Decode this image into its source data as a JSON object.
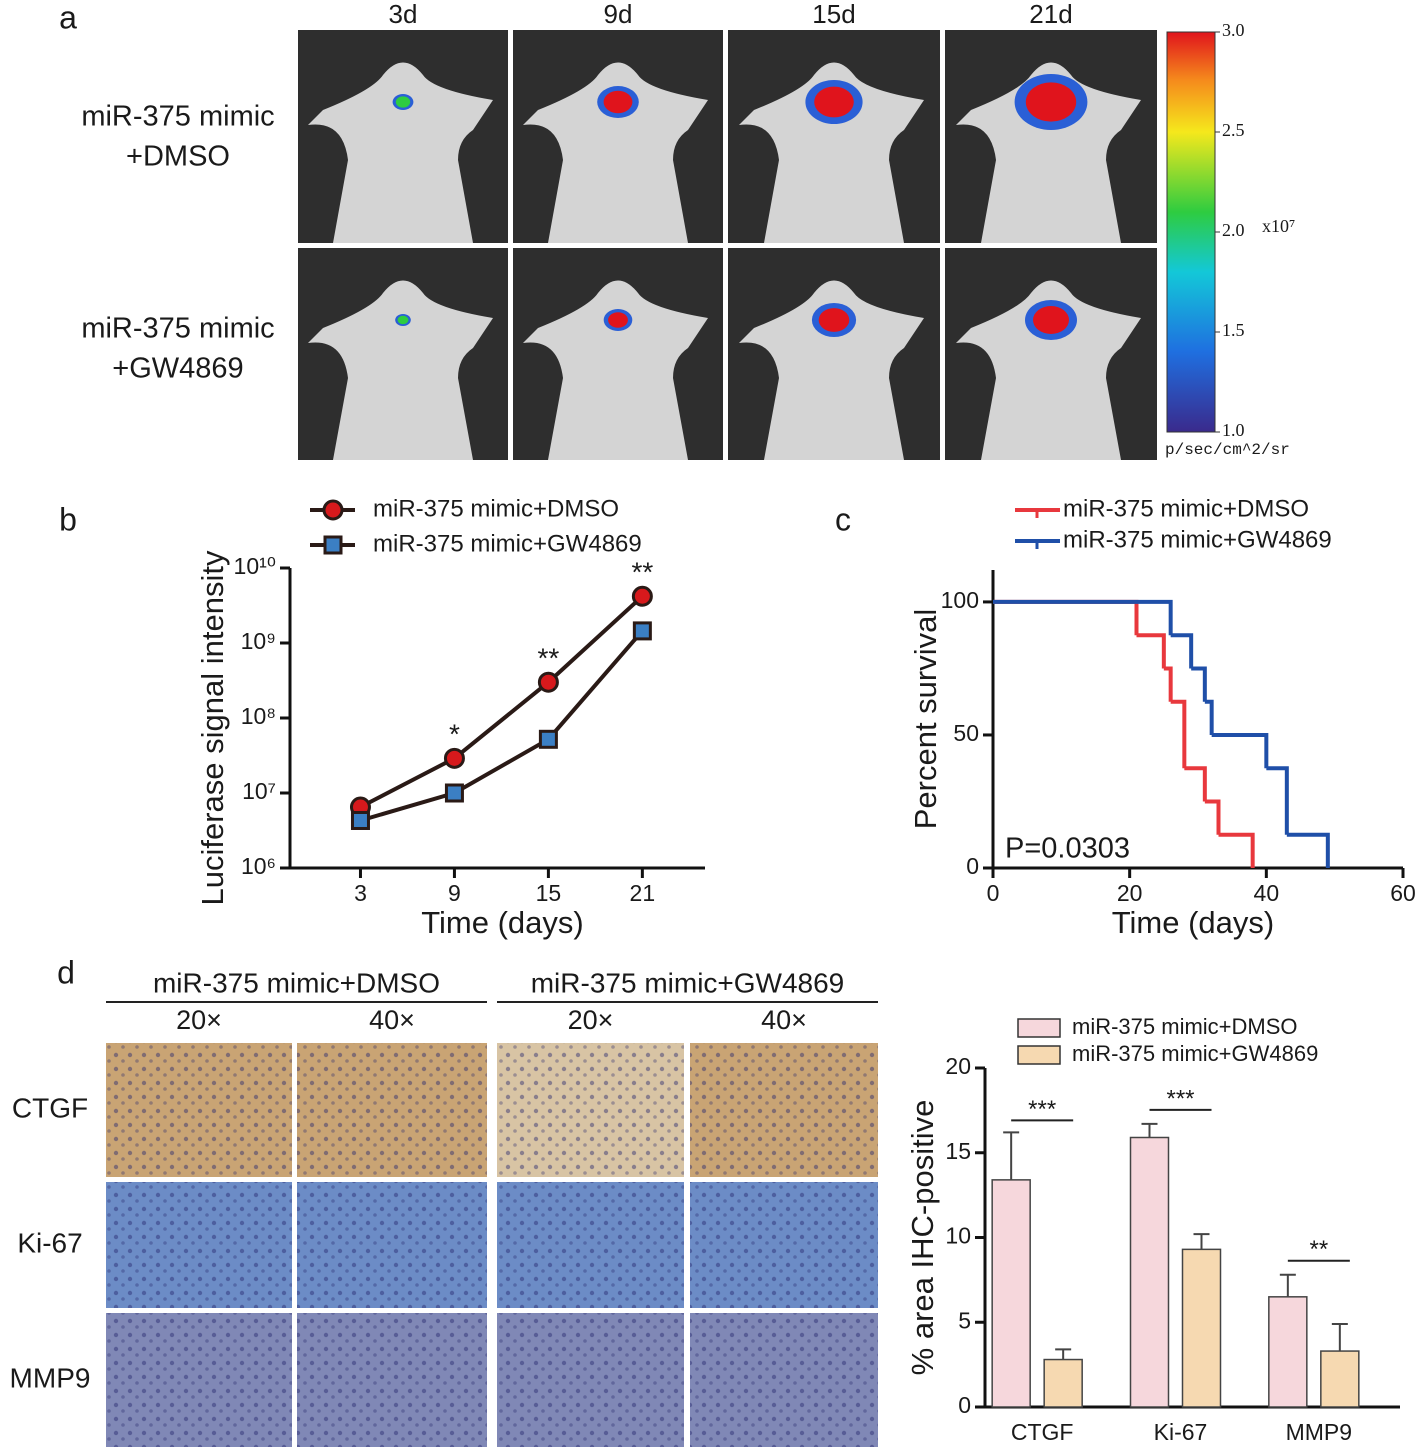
{
  "figure": {
    "panel_labels": [
      "a",
      "b",
      "c",
      "d"
    ],
    "imaging": {
      "timepoints": [
        "3d",
        "9d",
        "15d",
        "21d"
      ],
      "groups": [
        [
          "miR-375 mimic",
          "+DMSO"
        ],
        [
          "miR-375 mimic",
          "+GW4869"
        ]
      ],
      "colorbar": {
        "range": [
          1,
          3
        ],
        "ticks": [
          {
            "value": 3,
            "label": "3.0"
          },
          2.5,
          {
            "value": 2,
            "label": "2.0"
          },
          1.5,
          {
            "value": 1,
            "label": "1.0"
          }
        ],
        "multiplier": "x10⁷",
        "unit": "p/sec/cm^2/sr"
      }
    },
    "ihc": {
      "groups": [
        "miR-375 mimic+DMSO",
        "miR-375 mimic+GW4869"
      ],
      "magnifications": [
        "20×",
        "40×",
        "20×",
        "40×"
      ],
      "markers": [
        "CTGF",
        "Ki-67",
        "MMP9"
      ]
    }
  },
  "chart_data": [
    {
      "type": "line",
      "x_label": "Time (days)",
      "y_label": "Luciferase signal intensity",
      "x": [
        3,
        9,
        15,
        21
      ],
      "xlim": [
        -1.5,
        25
      ],
      "xticks": [
        3,
        9,
        15,
        21
      ],
      "log_y": true,
      "ylim": [
        1000000,
        10000000000
      ],
      "yticks": [
        {
          "value": 1000000,
          "label": "10⁶"
        },
        {
          "value": 10000000,
          "label": "10⁷"
        },
        {
          "value": 100000000,
          "label": "10⁸"
        },
        {
          "value": 1000000000,
          "label": "10⁹"
        },
        {
          "value": 10000000000,
          "label": "10¹⁰"
        }
      ],
      "line_color": "#2a1a16",
      "series": [
        {
          "name": "miR-375 mimic+DMSO",
          "color": "#d7191c",
          "marker": "circle",
          "values": [
            6500000,
            29000000,
            300000000,
            4200000000
          ]
        },
        {
          "name": "miR-375 mimic+GW4869",
          "color": "#3b7fc4",
          "marker": "square",
          "values": [
            4300000,
            10000000,
            52000000,
            1450000000
          ]
        }
      ],
      "significance": [
        null,
        "*",
        "**",
        "**"
      ]
    },
    {
      "type": "step",
      "x_label": "Time (days)",
      "y_label": "Percent survival",
      "xlim": [
        0,
        60
      ],
      "xticks": [
        0,
        20,
        40,
        60
      ],
      "ylim": [
        0,
        112
      ],
      "yticks": [
        0,
        50,
        100
      ],
      "annotation": "P=0.0303",
      "series": [
        {
          "name": "miR-375 mimic+DMSO",
          "color": "#e8383d",
          "x": [
            0,
            21,
            25,
            26,
            28,
            31,
            33,
            38
          ],
          "values": [
            100,
            87.5,
            75,
            62.5,
            37.5,
            25,
            12.5,
            0
          ]
        },
        {
          "name": "miR-375 mimic+GW4869",
          "color": "#1f4fa8",
          "x": [
            0,
            26,
            29,
            31,
            32,
            40,
            43,
            49
          ],
          "values": [
            100,
            87.5,
            75,
            62.5,
            50,
            37.5,
            12.5,
            0
          ]
        }
      ]
    },
    {
      "type": "bar",
      "y_label": "% area IHC-positive",
      "categories": [
        "CTGF",
        "Ki-67",
        "MMP9"
      ],
      "ylim": [
        0,
        20
      ],
      "yticks": [
        0,
        5,
        10,
        15,
        20
      ],
      "series": [
        {
          "name": "miR-375 mimic+DMSO",
          "color": "#f6d7dc",
          "values": [
            13.4,
            15.9,
            6.5
          ],
          "errors": [
            2.8,
            0.8,
            1.3
          ]
        },
        {
          "name": "miR-375 mimic+GW4869",
          "color": "#f6d9b1",
          "values": [
            2.8,
            9.3,
            3.3
          ],
          "errors": [
            0.6,
            0.9,
            1.6
          ]
        }
      ],
      "significance": [
        "***",
        "***",
        "**"
      ]
    }
  ]
}
